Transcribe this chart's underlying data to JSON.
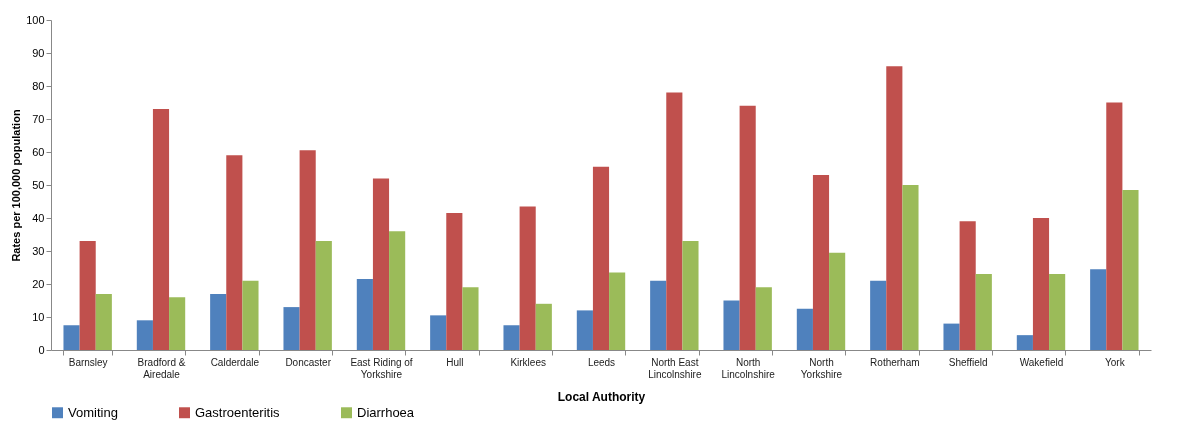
{
  "chart_data": {
    "type": "bar",
    "xlabel": "Local Authority",
    "ylabel": "Rates per 100,000 population",
    "categories": [
      "Barnsley",
      "Bradford & Airedale",
      "Calderdale",
      "Doncaster",
      "East Riding of Yorkshire",
      "Hull",
      "Kirklees",
      "Leeds",
      "North East Lincolnshire",
      "North Lincolnshire",
      "North Yorkshire",
      "Rotherham",
      "Sheffield",
      "Wakefield",
      "York"
    ],
    "series": [
      {
        "name": "Vomiting",
        "color": "#4f81bd",
        "values": [
          7.5,
          9,
          17,
          13,
          21.5,
          10.5,
          7.5,
          12,
          21,
          15,
          12.5,
          21,
          8,
          4.5,
          24.5
        ]
      },
      {
        "name": "Gastroenteritis",
        "color": "#c0504d",
        "values": [
          33,
          73,
          59,
          60.5,
          52,
          41.5,
          43.5,
          55.5,
          78,
          74,
          53,
          86,
          39,
          40,
          75
        ]
      },
      {
        "name": "Diarrhoea",
        "color": "#9bbb59",
        "values": [
          17,
          16,
          21,
          33,
          36,
          19,
          14,
          23.5,
          33,
          19,
          29.5,
          50,
          23,
          23,
          48.5
        ]
      }
    ],
    "ylim": [
      0,
      100
    ],
    "yticks": [
      0,
      10,
      20,
      30,
      40,
      50,
      60,
      70,
      80,
      90,
      100
    ],
    "grid": false,
    "legend": "bottom"
  }
}
